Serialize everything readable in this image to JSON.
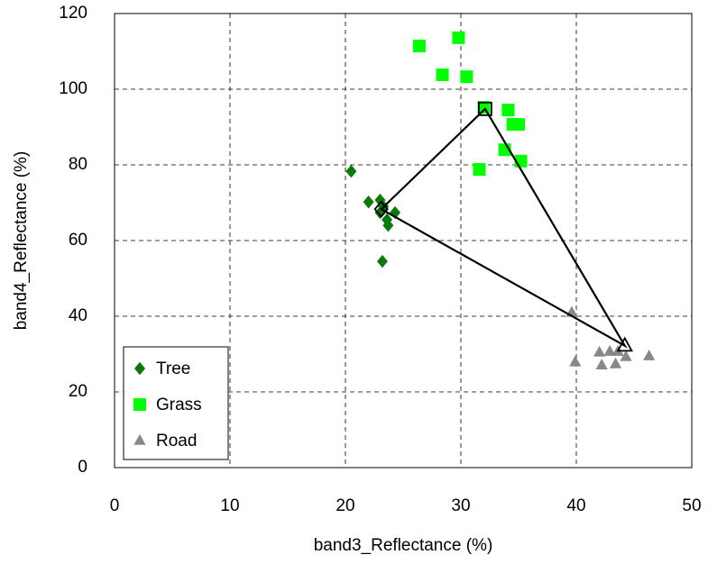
{
  "chart_data": {
    "type": "scatter",
    "xlabel": "band3_Reflectance (%)",
    "ylabel": "band4_Reflectance (%)",
    "xlim": [
      0,
      50
    ],
    "ylim": [
      0,
      120
    ],
    "xticks": [
      0,
      10,
      20,
      30,
      40,
      50
    ],
    "yticks": [
      0,
      20,
      40,
      60,
      80,
      100,
      120
    ],
    "grid": true,
    "legend": "lower left",
    "series": [
      {
        "name": "Tree",
        "color": "#0a7a0a",
        "marker": "diamond",
        "x": [
          20.5,
          22.0,
          23.0,
          23.0,
          23.3,
          23.6,
          23.7,
          24.3,
          23.2
        ],
        "y": [
          78.3,
          70.2,
          70.7,
          67.4,
          69.0,
          65.5,
          64.0,
          67.4,
          54.5
        ]
      },
      {
        "name": "Grass",
        "color": "#00ff00",
        "marker": "square",
        "x": [
          26.4,
          29.8,
          28.4,
          30.5,
          32.0,
          34.1,
          34.5,
          35.0,
          33.8,
          35.2,
          31.6
        ],
        "y": [
          111.4,
          113.6,
          103.8,
          103.3,
          95.2,
          94.5,
          90.7,
          90.7,
          84.0,
          81.0,
          78.8
        ]
      },
      {
        "name": "Road",
        "color": "#888888",
        "marker": "triangle",
        "x": [
          39.6,
          39.9,
          42.0,
          42.2,
          42.9,
          43.4,
          43.6,
          44.3,
          46.3
        ],
        "y": [
          41.0,
          27.9,
          30.5,
          27.1,
          30.7,
          27.4,
          30.7,
          29.3,
          29.5
        ]
      }
    ],
    "endmembers": {
      "color": "#000000",
      "markers": [
        "diamond",
        "square",
        "triangle"
      ],
      "x": [
        23.1,
        32.1,
        44.2
      ],
      "y": [
        68.3,
        94.8,
        32.2
      ]
    }
  }
}
